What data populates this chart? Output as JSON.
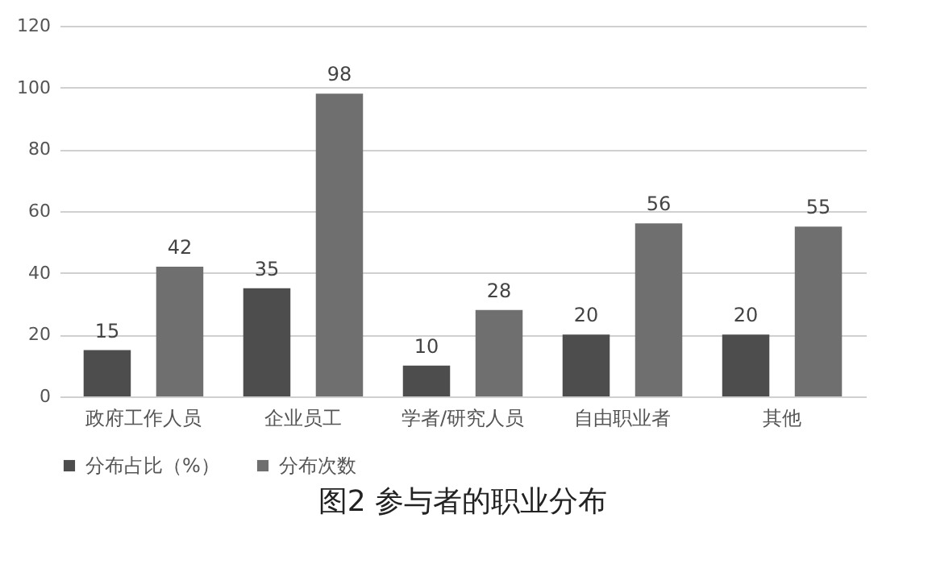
{
  "chart_data": {
    "type": "bar",
    "title": "图2  参与者的职业分布",
    "categories": [
      "政府工作人员",
      "企业员工",
      "学者/研究人员",
      "自由职业者",
      "其他"
    ],
    "series": [
      {
        "name": "分布占比（%）",
        "color": "#4d4d4d",
        "values": [
          15,
          35,
          10,
          20,
          20
        ]
      },
      {
        "name": "分布次数",
        "color": "#6f6f6f",
        "values": [
          42,
          98,
          28,
          56,
          55
        ]
      }
    ],
    "ylim": [
      0,
      120
    ],
    "yticks": [
      0,
      20,
      40,
      60,
      80,
      100,
      120
    ],
    "grid": "y",
    "legend": "bottom",
    "data_labels": true
  }
}
